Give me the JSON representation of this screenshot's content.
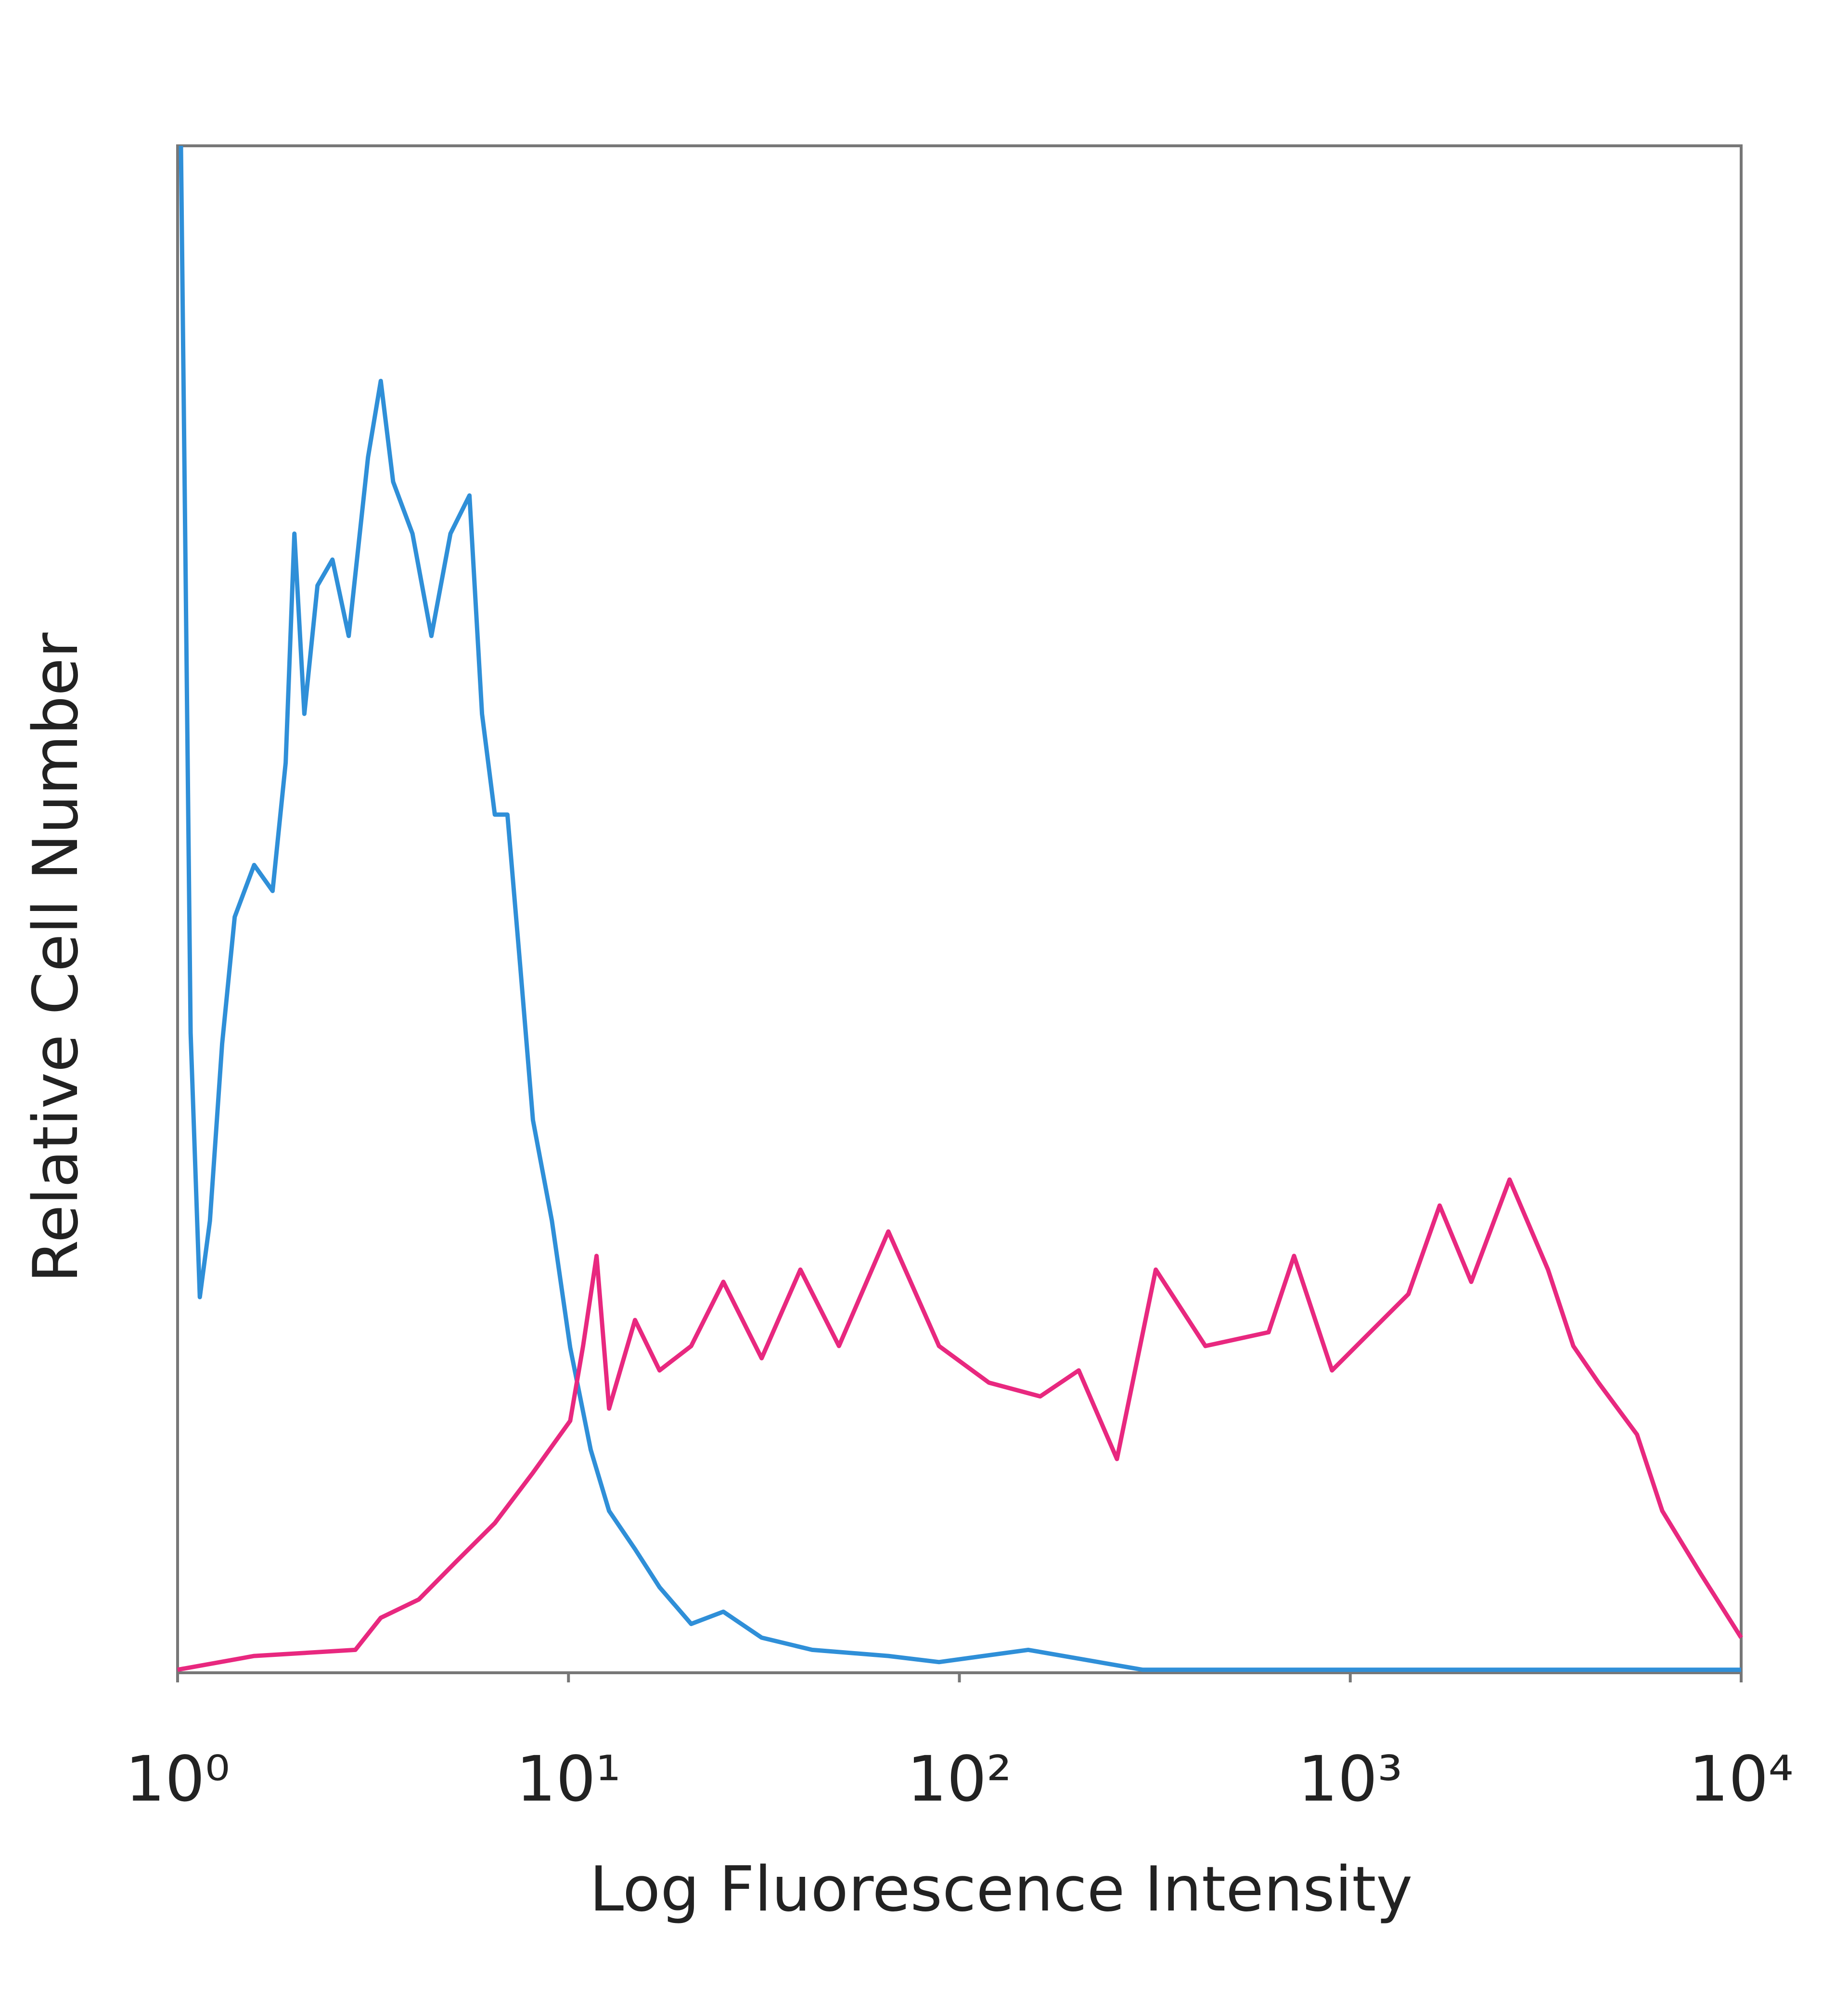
{
  "chart_data": {
    "type": "line",
    "x_label": "Log Fluorescence Intensity",
    "y_label": "Relative Cell Number",
    "xscale": "log",
    "xlim": [
      1,
      10000
    ],
    "ylim": [
      0,
      100
    ],
    "xticks": [
      {
        "value": 1,
        "label": "10⁰"
      },
      {
        "value": 10,
        "label": "10¹"
      },
      {
        "value": 100,
        "label": "10²"
      },
      {
        "value": 1000,
        "label": "10³"
      },
      {
        "value": 10000,
        "label": "10⁴"
      }
    ],
    "grid": false,
    "series": [
      {
        "color": "#2f8fd8",
        "x": [
          1.02,
          1.08,
          1.14,
          1.21,
          1.3,
          1.4,
          1.57,
          1.75,
          1.89,
          1.99,
          2.11,
          2.28,
          2.49,
          2.74,
          3.07,
          3.31,
          3.56,
          3.99,
          4.46,
          4.99,
          5.58,
          6.01,
          6.48,
          6.98,
          7.53,
          8.11,
          9.07,
          10.1,
          11.4,
          12.7,
          14.8,
          17.1,
          20.6,
          24.9,
          31.2,
          42.0,
          65.8,
          88.7,
          150,
          294,
          1309,
          10000
        ],
        "values": [
          100,
          41.9,
          24.6,
          29.6,
          41.2,
          49.5,
          52.9,
          51.2,
          59.6,
          74.6,
          62.8,
          71.2,
          72.9,
          67.9,
          79.6,
          84.6,
          78.0,
          74.6,
          67.9,
          74.6,
          77.1,
          62.8,
          56.2,
          56.2,
          46.2,
          36.2,
          29.6,
          21.3,
          14.6,
          10.6,
          8.1,
          5.6,
          3.2,
          4.0,
          2.3,
          1.5,
          1.1,
          0.7,
          1.5,
          0.2,
          0.2,
          0.2
        ]
      },
      {
        "color": "#e8287f",
        "x": [
          1,
          1.57,
          2.85,
          3.31,
          4.14,
          5.17,
          6.48,
          8.11,
          10.1,
          10.9,
          11.8,
          12.7,
          14.8,
          17.1,
          20.6,
          24.9,
          31.2,
          39.2,
          49.2,
          65.8,
          88.7,
          119,
          161,
          202,
          253,
          318,
          426,
          618,
          718,
          898,
          1124,
          1408,
          1693,
          2039,
          2556,
          3205,
          3720,
          4315,
          5414,
          6283,
          7872,
          10000
        ],
        "values": [
          0.2,
          1.1,
          1.5,
          3.6,
          4.8,
          7.3,
          9.8,
          13.1,
          16.5,
          21.4,
          27.3,
          17.3,
          23.1,
          19.8,
          21.4,
          25.6,
          20.6,
          26.4,
          21.4,
          28.9,
          21.4,
          19.0,
          18.1,
          19.8,
          14.0,
          26.4,
          21.4,
          22.3,
          27.3,
          19.8,
          22.3,
          24.8,
          30.6,
          25.6,
          32.3,
          26.4,
          21.4,
          19.0,
          15.6,
          10.6,
          6.5,
          2.3
        ]
      }
    ]
  }
}
